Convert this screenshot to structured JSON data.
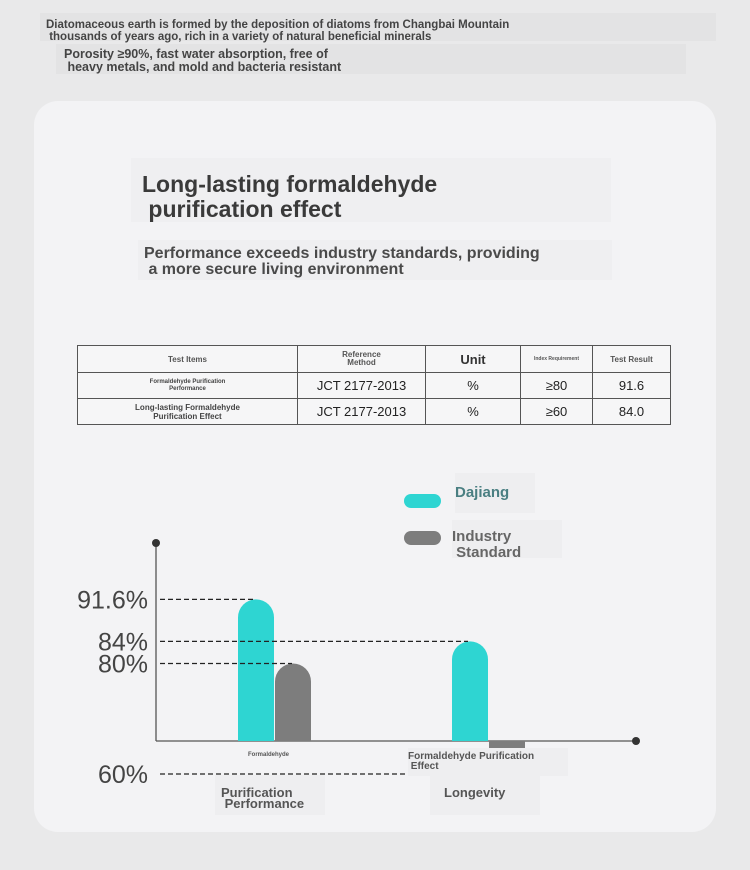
{
  "intro": {
    "line1": "Diatomaceous earth is formed by the deposition of diatoms from Changbai Mountain\n thousands of years ago, rich in a variety of natural beneficial minerals",
    "line2": "Porosity ≥90%, fast water absorption, free of\n heavy metals, and mold and bacteria resistant"
  },
  "section": {
    "title": "Long-lasting formaldehyde\n purification effect",
    "subtitle": "Performance exceeds industry standards, providing\n a more secure living environment"
  },
  "table": {
    "headers": [
      "Test Items",
      "Reference\nMethod",
      "Unit",
      "Index Requirement",
      "Test Result"
    ],
    "rows": [
      [
        "Formaldehyde Purification\nPerformance",
        "JCT 2177-2013",
        "%",
        "≥80",
        "91.6"
      ],
      [
        "Long-lasting Formaldehyde\nPurification Effect",
        "JCT 2177-2013",
        "%",
        "≥60",
        "84.0"
      ]
    ]
  },
  "chart_data": {
    "type": "bar",
    "categories": [
      "Formaldehyde",
      "Formaldehyde Purification\n Effect"
    ],
    "group_labels": [
      "Purification\n Performance",
      "Longevity"
    ],
    "series": [
      {
        "name": "Dajiang",
        "values": [
          91.6,
          84
        ],
        "color": "#2ed5d2"
      },
      {
        "name": "Industry\n Standard",
        "values": [
          80,
          60
        ],
        "color": "#7d7d7d"
      }
    ],
    "y_tick_labels": [
      {
        "value": 91.6,
        "label": "91.6%"
      },
      {
        "value": 84,
        "label": "84%"
      },
      {
        "value": 80,
        "label": "80%"
      },
      {
        "value": 60,
        "label": "60%"
      }
    ],
    "ylim": [
      0,
      100
    ],
    "grid": false,
    "legend_position": "top-right"
  }
}
